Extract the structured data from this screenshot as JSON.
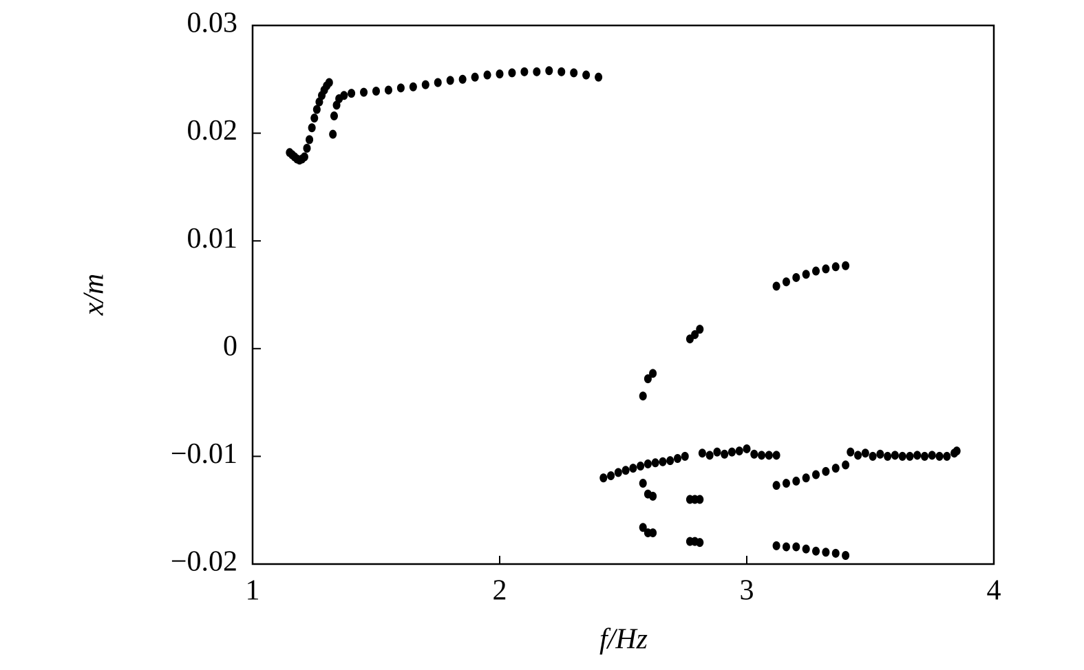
{
  "chart_data": {
    "type": "scatter",
    "x_label": "f/Hz",
    "y_label": "x/m",
    "color": "#000000",
    "xlim": [
      1,
      4
    ],
    "xticks": [
      1,
      2,
      3,
      4
    ],
    "ylim": [
      -0.02,
      0.03
    ],
    "yticks": [
      {
        "value": -0.02,
        "label": "−0.02"
      },
      {
        "value": -0.01,
        "label": "−0.01"
      },
      0,
      0.01,
      0.02,
      0.03
    ],
    "x": [
      1.15,
      1.16,
      1.17,
      1.18,
      1.19,
      1.2,
      1.21,
      1.22,
      1.23,
      1.24,
      1.25,
      1.26,
      1.27,
      1.28,
      1.29,
      1.3,
      1.31,
      1.325,
      1.33,
      1.34,
      1.35,
      1.37,
      1.4,
      1.45,
      1.5,
      1.55,
      1.6,
      1.65,
      1.7,
      1.75,
      1.8,
      1.85,
      1.9,
      1.95,
      2.0,
      2.05,
      2.1,
      2.15,
      2.2,
      2.25,
      2.3,
      2.35,
      2.4,
      2.42,
      2.45,
      2.48,
      2.51,
      2.54,
      2.57,
      2.6,
      2.63,
      2.66,
      2.69,
      2.72,
      2.75,
      2.82,
      2.85,
      2.88,
      2.91,
      2.94,
      2.97,
      3.0,
      3.03,
      3.06,
      3.09,
      3.12,
      2.58,
      2.6,
      2.62,
      2.58,
      2.6,
      2.62,
      2.58,
      2.6,
      2.62,
      2.77,
      2.79,
      2.81,
      2.77,
      2.79,
      2.81,
      2.77,
      2.79,
      2.81,
      3.12,
      3.16,
      3.2,
      3.24,
      3.28,
      3.32,
      3.36,
      3.4,
      3.12,
      3.16,
      3.2,
      3.24,
      3.28,
      3.32,
      3.36,
      3.4,
      3.12,
      3.16,
      3.2,
      3.24,
      3.28,
      3.32,
      3.36,
      3.4,
      3.42,
      3.45,
      3.48,
      3.51,
      3.54,
      3.57,
      3.6,
      3.63,
      3.66,
      3.69,
      3.72,
      3.75,
      3.78,
      3.81,
      3.84,
      3.85
    ],
    "values": [
      0.0182,
      0.018,
      0.0178,
      0.0176,
      0.0175,
      0.0176,
      0.0178,
      0.0186,
      0.0194,
      0.0205,
      0.0214,
      0.0222,
      0.0229,
      0.0235,
      0.024,
      0.0244,
      0.0247,
      0.0199,
      0.0216,
      0.0226,
      0.0232,
      0.0235,
      0.0237,
      0.0238,
      0.0239,
      0.024,
      0.0242,
      0.0243,
      0.0245,
      0.0247,
      0.0249,
      0.025,
      0.0252,
      0.0254,
      0.0255,
      0.0256,
      0.0257,
      0.0257,
      0.0258,
      0.0257,
      0.0256,
      0.0254,
      0.0252,
      -0.012,
      -0.0118,
      -0.0115,
      -0.0113,
      -0.0111,
      -0.0109,
      -0.0107,
      -0.0106,
      -0.0105,
      -0.0104,
      -0.0102,
      -0.01,
      -0.0097,
      -0.0099,
      -0.0096,
      -0.0098,
      -0.0096,
      -0.0095,
      -0.0093,
      -0.0098,
      -0.0099,
      -0.0099,
      -0.0099,
      -0.0044,
      -0.0028,
      -0.0023,
      -0.0125,
      -0.0135,
      -0.0137,
      -0.0166,
      -0.0171,
      -0.0171,
      0.0009,
      0.0013,
      0.0018,
      -0.014,
      -0.014,
      -0.014,
      -0.0179,
      -0.0179,
      -0.018,
      0.0058,
      0.0062,
      0.0066,
      0.0069,
      0.0072,
      0.0074,
      0.0076,
      0.0077,
      -0.0127,
      -0.0125,
      -0.0123,
      -0.012,
      -0.0117,
      -0.0114,
      -0.0111,
      -0.0108,
      -0.0183,
      -0.0184,
      -0.0184,
      -0.0186,
      -0.0188,
      -0.0189,
      -0.019,
      -0.0192,
      -0.0096,
      -0.0099,
      -0.0097,
      -0.01,
      -0.0098,
      -0.01,
      -0.0099,
      -0.01,
      -0.01,
      -0.0099,
      -0.01,
      -0.0099,
      -0.01,
      -0.01,
      -0.0097,
      -0.0095
    ]
  }
}
